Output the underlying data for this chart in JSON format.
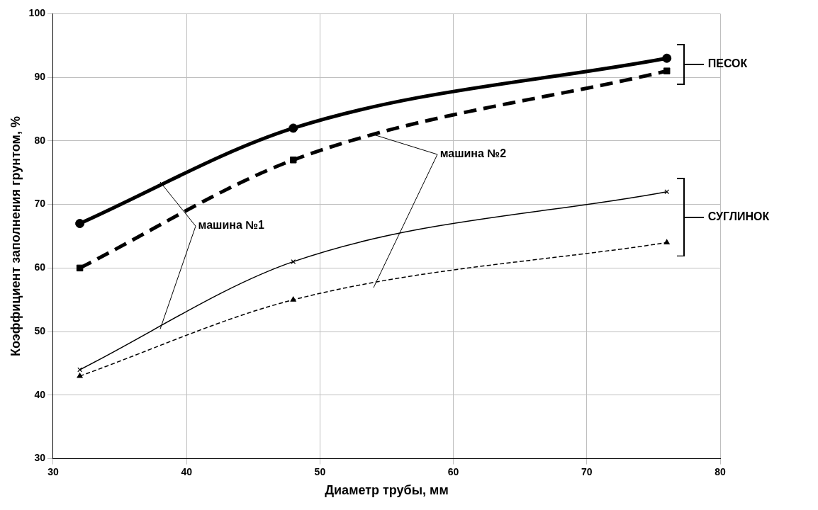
{
  "chart_data": {
    "type": "line",
    "xlabel": "Диаметр трубы, мм",
    "ylabel": "Коэффициент заполнения грунтом, %",
    "xlim": [
      30,
      80
    ],
    "xticks": [
      30,
      40,
      50,
      60,
      70,
      80
    ],
    "ylim": [
      30,
      100
    ],
    "yticks": [
      30,
      40,
      50,
      60,
      70,
      80,
      90,
      100
    ],
    "grid": true,
    "legend": false,
    "series": [
      {
        "color": "#000000",
        "x": [
          32,
          48,
          76
        ],
        "values": [
          67,
          82,
          93
        ],
        "marker": "circle",
        "line_style": "solid"
      },
      {
        "color": "#000000",
        "x": [
          32,
          48,
          76
        ],
        "values": [
          60,
          77,
          91
        ],
        "marker": "square",
        "line_style": "dashed"
      },
      {
        "color": "#000000",
        "x": [
          32,
          48,
          76
        ],
        "values": [
          44,
          61,
          72
        ],
        "marker": "cross",
        "line_style": "solid"
      },
      {
        "color": "#000000",
        "x": [
          32,
          48,
          76
        ],
        "values": [
          43,
          55,
          64
        ],
        "marker": "triangle",
        "line_style": "dashed"
      }
    ],
    "annotations": [
      {
        "text": "машина №1",
        "x": 38,
        "y": 73.5
      },
      {
        "text": "машина №2",
        "x": 54,
        "y": 81
      },
      "ПЕСОК",
      "СУГЛИНОК"
    ]
  }
}
